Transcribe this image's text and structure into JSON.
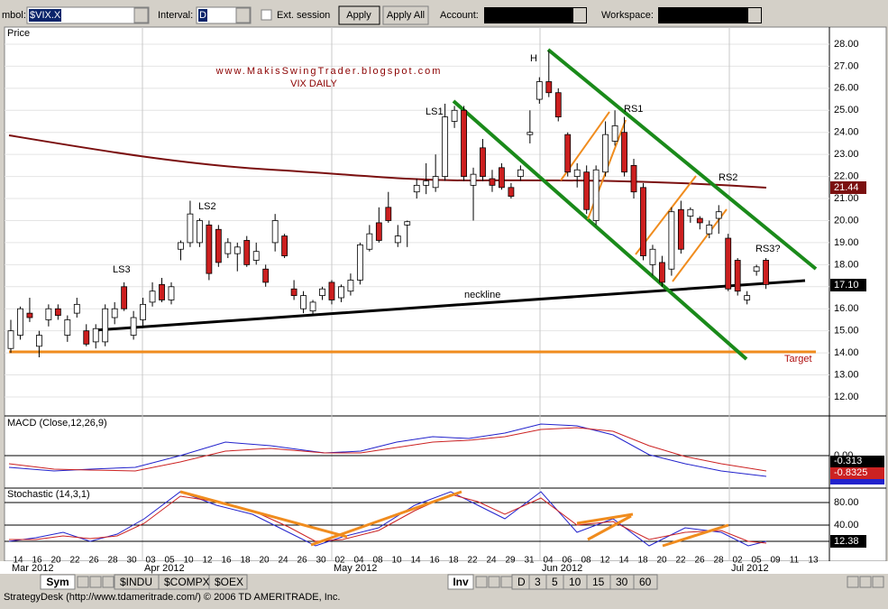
{
  "toolbar": {
    "symbol_label": "mbol:",
    "symbol": "$VIX.X",
    "interval_label": "Interval:",
    "interval": "D",
    "ext_session": "Ext. session",
    "apply": "Apply",
    "apply_all": "Apply All",
    "account_label": "Account:",
    "workspace_label": "Workspace:"
  },
  "price_panel": {
    "label": "Price",
    "watermark": "www.MakisSwingTrader.blogspot.com",
    "subtitle": "VIX DAILY",
    "annotations": {
      "ls3": "LS3",
      "ls2": "LS2",
      "ls1": "LS1",
      "h": "H",
      "rs1": "RS1",
      "rs2": "RS2",
      "rs3": "RS3?",
      "neckline": "neckline",
      "target": "Target"
    },
    "yticks": [
      {
        "value": 12,
        "label": "12.00"
      },
      {
        "value": 13,
        "label": "13.00"
      },
      {
        "value": 14,
        "label": "14.00"
      },
      {
        "value": 15,
        "label": "15.00"
      },
      {
        "value": 16,
        "label": "16.00"
      },
      {
        "value": 17,
        "label": "17.00"
      },
      {
        "value": 18,
        "label": "18.00"
      },
      {
        "value": 19,
        "label": "19.00"
      },
      {
        "value": 20,
        "label": "20.00"
      },
      {
        "value": 21,
        "label": "21.00"
      },
      {
        "value": 22,
        "label": "22.00"
      },
      {
        "value": 23,
        "label": "23.00"
      },
      {
        "value": 24,
        "label": "24.00"
      },
      {
        "value": 25,
        "label": "25.00"
      },
      {
        "value": 26,
        "label": "26.00"
      },
      {
        "value": 27,
        "label": "27.00"
      },
      {
        "value": 28,
        "label": "28.00"
      }
    ],
    "last_ma": "21.44",
    "last_price": "17.10",
    "candles": [
      [
        14.2,
        15.5,
        14.0,
        15.0
      ],
      [
        14.8,
        16.1,
        14.6,
        16.0
      ],
      [
        15.8,
        16.5,
        15.4,
        15.6
      ],
      [
        14.3,
        15.0,
        13.8,
        14.8
      ],
      [
        15.5,
        16.2,
        15.2,
        16.0
      ],
      [
        16.0,
        16.2,
        15.5,
        15.7
      ],
      [
        14.8,
        15.7,
        14.5,
        15.5
      ],
      [
        15.8,
        16.5,
        15.6,
        16.2
      ],
      [
        15.0,
        15.3,
        14.3,
        14.4
      ],
      [
        14.5,
        15.3,
        14.2,
        15.1
      ],
      [
        14.5,
        16.2,
        14.3,
        16.0
      ],
      [
        15.6,
        16.3,
        15.3,
        16.0
      ],
      [
        17.0,
        17.2,
        15.9,
        16.0
      ],
      [
        14.8,
        15.9,
        14.6,
        15.6
      ],
      [
        15.5,
        16.5,
        15.2,
        16.2
      ],
      [
        16.3,
        17.2,
        16.1,
        16.8
      ],
      [
        17.1,
        17.4,
        16.3,
        16.4
      ],
      [
        16.4,
        17.2,
        16.2,
        17.0
      ],
      [
        18.7,
        19.1,
        18.2,
        19.0
      ],
      [
        19.0,
        20.9,
        18.8,
        20.3
      ],
      [
        19.0,
        20.1,
        18.8,
        20.0
      ],
      [
        19.8,
        20.0,
        17.3,
        17.6
      ],
      [
        19.6,
        19.8,
        17.9,
        18.1
      ],
      [
        18.5,
        19.2,
        18.3,
        19.0
      ],
      [
        18.5,
        19.0,
        17.7,
        18.8
      ],
      [
        19.1,
        19.3,
        17.9,
        18.0
      ],
      [
        18.2,
        19.0,
        18.0,
        18.6
      ],
      [
        17.8,
        18.0,
        17.0,
        17.2
      ],
      [
        19.0,
        20.3,
        18.6,
        20.0
      ],
      [
        19.3,
        19.4,
        18.3,
        18.4
      ],
      [
        16.9,
        17.3,
        16.4,
        16.6
      ],
      [
        16.0,
        16.8,
        15.8,
        16.6
      ],
      [
        15.9,
        16.4,
        15.7,
        16.3
      ],
      [
        16.6,
        17.0,
        16.4,
        16.9
      ],
      [
        17.2,
        17.3,
        16.2,
        16.4
      ],
      [
        16.5,
        17.1,
        16.3,
        17.0
      ],
      [
        16.8,
        17.6,
        16.6,
        17.3
      ],
      [
        17.3,
        19.0,
        17.1,
        18.9
      ],
      [
        18.7,
        19.8,
        18.6,
        19.4
      ],
      [
        19.9,
        20.6,
        19.0,
        19.1
      ],
      [
        20.6,
        21.3,
        19.9,
        20.0
      ],
      [
        19.0,
        19.8,
        18.8,
        19.3
      ],
      [
        19.8,
        20.0,
        18.8,
        19.95
      ],
      [
        21.3,
        21.9,
        21.0,
        21.6
      ],
      [
        21.6,
        22.6,
        21.2,
        21.8
      ],
      [
        21.5,
        23.0,
        21.3,
        22.0
      ],
      [
        22.0,
        25.3,
        21.8,
        24.7
      ],
      [
        24.5,
        25.2,
        24.2,
        25.0
      ],
      [
        25.0,
        25.2,
        21.8,
        22.0
      ],
      [
        21.6,
        22.4,
        20.0,
        22.1
      ],
      [
        23.3,
        23.7,
        21.8,
        22.0
      ],
      [
        21.9,
        22.3,
        21.3,
        21.6
      ],
      [
        22.4,
        22.6,
        21.4,
        21.5
      ],
      [
        21.5,
        21.7,
        21.0,
        21.1
      ],
      [
        22.0,
        22.5,
        21.8,
        22.3
      ],
      [
        23.9,
        25.0,
        23.5,
        24.0
      ],
      [
        25.5,
        26.5,
        25.3,
        26.3
      ],
      [
        26.3,
        27.7,
        25.6,
        25.8
      ],
      [
        25.8,
        26.0,
        24.5,
        24.7
      ],
      [
        23.9,
        24.0,
        22.0,
        22.2
      ],
      [
        22.0,
        22.6,
        21.5,
        22.3
      ],
      [
        22.2,
        22.5,
        20.3,
        20.5
      ],
      [
        20.0,
        22.5,
        19.8,
        22.3
      ],
      [
        22.2,
        24.5,
        22.0,
        23.9
      ],
      [
        23.6,
        25.0,
        23.4,
        24.3
      ],
      [
        24.0,
        24.7,
        22.0,
        22.2
      ],
      [
        22.5,
        22.8,
        21.0,
        21.3
      ],
      [
        21.5,
        21.7,
        18.2,
        18.4
      ],
      [
        18.0,
        18.9,
        17.5,
        18.7
      ],
      [
        18.1,
        18.4,
        17.0,
        17.2
      ],
      [
        17.8,
        20.6,
        17.5,
        20.4
      ],
      [
        20.5,
        20.9,
        18.5,
        18.7
      ],
      [
        20.2,
        20.6,
        19.9,
        20.5
      ],
      [
        20.1,
        20.2,
        19.6,
        19.9
      ],
      [
        19.4,
        20.0,
        19.2,
        19.8
      ],
      [
        20.1,
        20.7,
        19.4,
        20.4
      ],
      [
        19.2,
        19.4,
        16.8,
        16.9
      ],
      [
        18.2,
        18.3,
        16.6,
        16.8
      ],
      [
        16.4,
        16.8,
        16.2,
        16.6
      ],
      [
        17.7,
        18.0,
        17.5,
        17.9
      ],
      [
        18.2,
        18.3,
        16.9,
        17.1
      ]
    ]
  },
  "macd_panel": {
    "label": "MACD (Close,12,26,9)",
    "zero": "0.00",
    "macd": "-0.313",
    "signal": "-0.8325"
  },
  "stoch_panel": {
    "label": "Stochastic (14,3,1)",
    "ticks": [
      "80.00",
      "40.00"
    ],
    "value": "12.38"
  },
  "date_axis": {
    "days": [
      "14",
      "16",
      "20",
      "22",
      "26",
      "28",
      "30",
      "03",
      "05",
      "10",
      "12",
      "16",
      "18",
      "20",
      "24",
      "26",
      "30",
      "02",
      "04",
      "08",
      "10",
      "14",
      "16",
      "18",
      "22",
      "24",
      "29",
      "31",
      "04",
      "06",
      "08",
      "12",
      "14",
      "18",
      "20",
      "22",
      "26",
      "28",
      "02",
      "05",
      "09",
      "11",
      "13"
    ],
    "months": [
      "Mar 2012",
      "Apr 2012",
      "May 2012",
      "Jun 2012",
      "Jul 2012"
    ]
  },
  "tabs": {
    "sym": "Sym",
    "symbols": [
      "$INDU",
      "$COMPX",
      "$OEX"
    ],
    "inv": "Inv",
    "intervals": [
      "D",
      "3",
      "5",
      "10",
      "15",
      "30",
      "60"
    ]
  },
  "status": "StrategyDesk (http://www.tdameritrade.com/) © 2006 TD AMERITRADE, Inc."
}
